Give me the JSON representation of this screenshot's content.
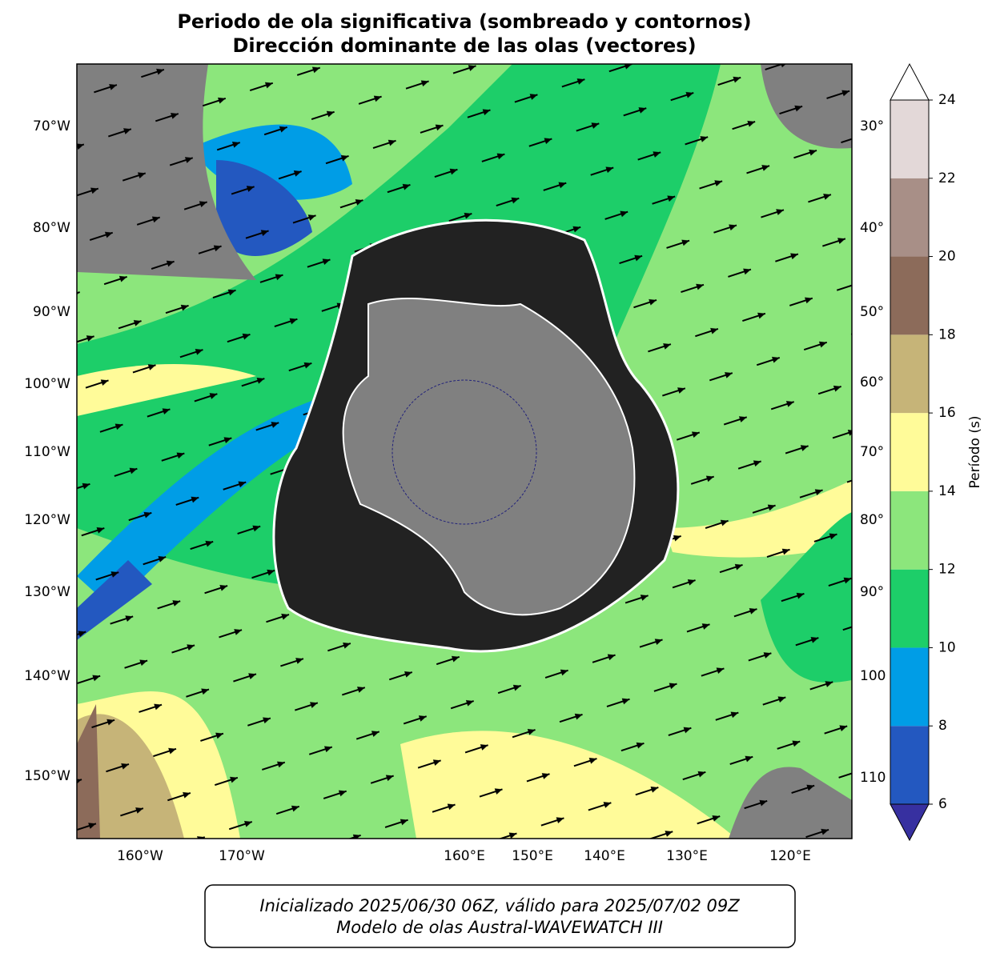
{
  "title": [
    "Periodo de ola significativa (sombreado y contornos)",
    "Dirección dominante de las olas (vectores)"
  ],
  "map": {
    "left_labels": [
      "70°W",
      "80°W",
      "90°W",
      "100°W",
      "110°W",
      "120°W",
      "130°W",
      "140°W",
      "150°W"
    ],
    "right_labels": [
      "30°",
      "40°",
      "50°",
      "60°",
      "70°",
      "80°",
      "90°",
      "100",
      "110"
    ],
    "bottom_labels": [
      "160°W",
      "170°W",
      "160°E",
      "150°E",
      "140°E",
      "130°E",
      "120°E"
    ]
  },
  "colorbar": {
    "label": "Período (s)",
    "lim": [
      6,
      24
    ],
    "ticks": [
      6,
      8,
      10,
      12,
      14,
      16,
      18,
      20,
      22,
      24
    ],
    "colors": [
      "#2358c0",
      "#009de6",
      "#1dce69",
      "#8ce67c",
      "#fffb99",
      "#c6b478",
      "#8c6b5a",
      "#a88f87",
      "#e3d8d8"
    ],
    "under_color": "#3730a0",
    "over_color": "#ffffff"
  },
  "footer": [
    "Inicializado 2025/06/30 06Z, válido para 2025/07/02 09Z",
    "Modelo de olas Austral-WAVEWATCH III"
  ]
}
